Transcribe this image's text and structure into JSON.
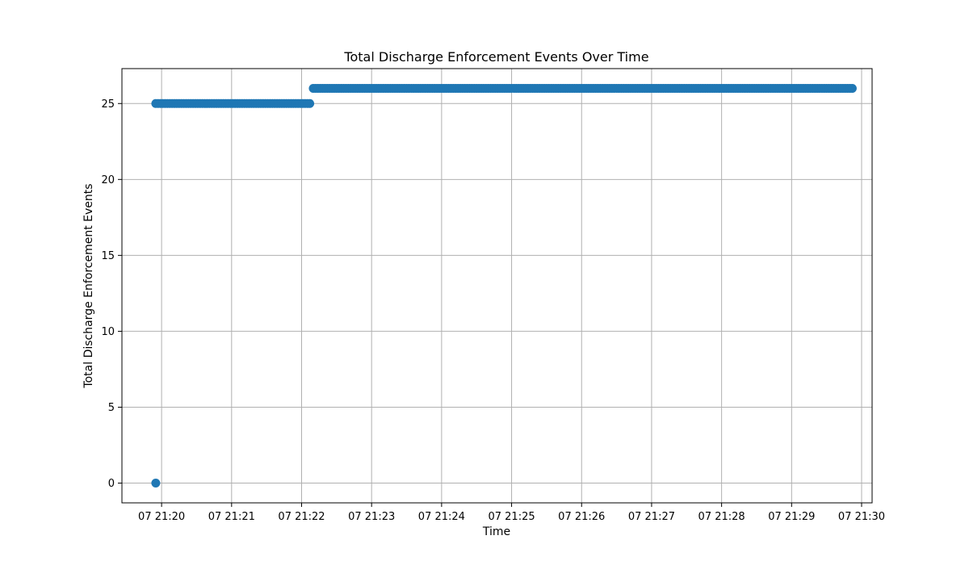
{
  "chart_data": {
    "type": "scatter",
    "title": "Total Discharge Enforcement Events Over Time",
    "xlabel": "Time",
    "ylabel": "Total Discharge Enforcement Events",
    "x_unit": "time (day 07, HH:MM)",
    "xlim": [
      "07 21:19:26",
      "07 21:30:09"
    ],
    "ylim": [
      -1.3,
      27.3
    ],
    "x_ticks": [
      "07 21:20",
      "07 21:21",
      "07 21:22",
      "07 21:23",
      "07 21:24",
      "07 21:25",
      "07 21:26",
      "07 21:27",
      "07 21:28",
      "07 21:29",
      "07 21:30"
    ],
    "y_ticks": [
      0,
      5,
      10,
      15,
      20,
      25
    ],
    "grid": true,
    "color": "#1f77b4",
    "segments": [
      {
        "y": 0,
        "x_start": "07 21:19:55",
        "x_end": "07 21:19:55"
      },
      {
        "y": 25,
        "x_start": "07 21:19:55",
        "x_end": "07 21:22:08"
      },
      {
        "y": 26,
        "x_start": "07 21:22:10",
        "x_end": "07 21:29:52"
      }
    ]
  }
}
